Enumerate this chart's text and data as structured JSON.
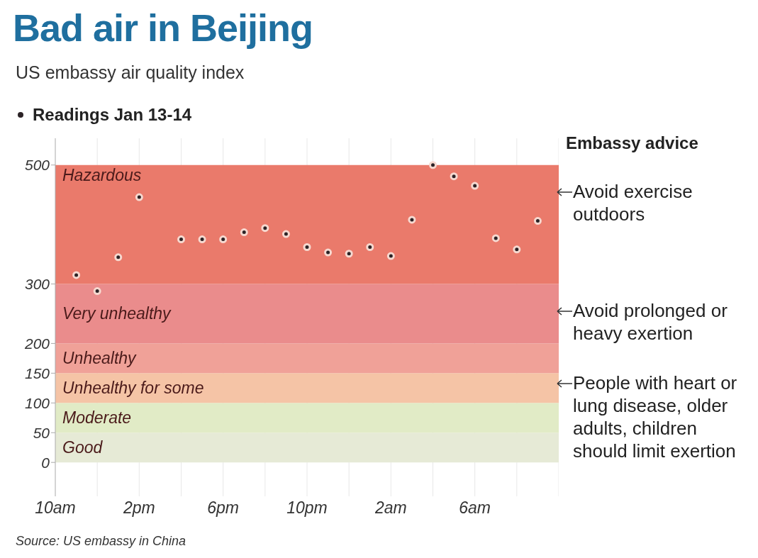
{
  "chart_data": {
    "type": "scatter",
    "title": "Bad air in Beijing",
    "subtitle": "US embassy air quality index",
    "categories": [
      "10am",
      null,
      null,
      null,
      "2pm",
      null,
      null,
      null,
      "6pm",
      null,
      null,
      null,
      "10pm",
      null,
      null,
      null,
      "2am",
      null,
      null,
      null,
      "6am",
      null,
      null,
      null
    ],
    "series": [
      {
        "name": "Readings Jan 13-14",
        "color": "#2b2326",
        "values": [
          null,
          315,
          288,
          345,
          446,
          null,
          375,
          375,
          375,
          387,
          394,
          384,
          362,
          353,
          351,
          362,
          347,
          408,
          500,
          481,
          465,
          377,
          358,
          406
        ]
      }
    ],
    "ylim": [
      -57,
      545
    ],
    "yticks": [
      0,
      50,
      100,
      150,
      200,
      300,
      500
    ],
    "grid": "x",
    "legend": "top left",
    "marker": "circle",
    "bands": [
      {
        "axis": "y",
        "from": 0,
        "to": 50,
        "label": "Good",
        "color": "#e6ead6"
      },
      {
        "axis": "y",
        "from": 50,
        "to": 100,
        "label": "Moderate",
        "color": "#e1ebc6"
      },
      {
        "axis": "y",
        "from": 100,
        "to": 150,
        "label": "Unhealthy for some",
        "color": "#f5c4a6"
      },
      {
        "axis": "y",
        "from": 150,
        "to": 200,
        "label": "Unhealthy",
        "color": "#f0a198"
      },
      {
        "axis": "y",
        "from": 200,
        "to": 300,
        "label": "Very unhealthy",
        "color": "#ea8c8c"
      },
      {
        "axis": "y",
        "from": 300,
        "to": 500,
        "label": "Hazardous",
        "color": "#ea7a6b"
      }
    ],
    "annotations": [
      "Embassy advice",
      "Avoid exercise outdoors",
      "Avoid prolonged or heavy exertion",
      "People with heart or lung disease, older adults, children should limit exertion",
      "Source: US embassy in China"
    ]
  }
}
